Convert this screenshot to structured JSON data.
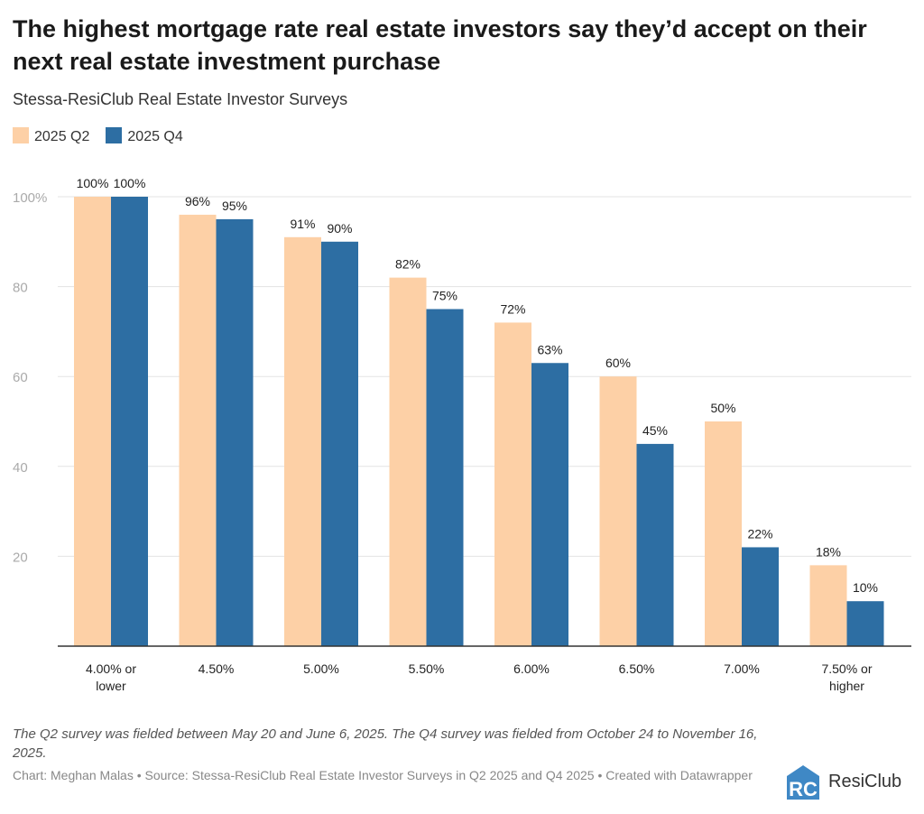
{
  "title": "The highest mortgage rate real estate investors say they’d accept on their next real estate investment purchase",
  "subtitle": "Stessa-ResiClub Real Estate Investor Surveys",
  "note": "The Q2 survey was fielded between May 20 and June 6, 2025. The Q4 survey was fielded from October 24 to November 16, 2025.",
  "credit": "Chart: Meghan Malas • Source: Stessa-ResiClub Real Estate Investor Surveys in Q2 2025 and Q4 2025 • Created with Datawrapper",
  "logo": {
    "text": "ResiClub",
    "mark": "RC"
  },
  "colors": {
    "q2": "#fdd0a6",
    "q4": "#2d6ea3",
    "grid": "#e3e3e3",
    "axis": "#333333"
  },
  "chart_data": {
    "type": "bar",
    "title": "The highest mortgage rate real estate investors say they’d accept on their next real estate investment purchase",
    "categories": [
      [
        "4.00% or",
        "lower"
      ],
      [
        "4.50%"
      ],
      [
        "5.00%"
      ],
      [
        "5.50%"
      ],
      [
        "6.00%"
      ],
      [
        "6.50%"
      ],
      [
        "7.00%"
      ],
      [
        "7.50% or",
        "higher"
      ]
    ],
    "series": [
      {
        "name": "2025 Q2",
        "values": [
          100,
          96,
          91,
          82,
          72,
          60,
          50,
          18
        ],
        "labels": [
          "100%",
          "96%",
          "91%",
          "82%",
          "72%",
          "60%",
          "50%",
          "18%"
        ]
      },
      {
        "name": "2025 Q4",
        "values": [
          100,
          95,
          90,
          75,
          63,
          45,
          22,
          10
        ],
        "labels": [
          "100%",
          "95%",
          "90%",
          "75%",
          "63%",
          "45%",
          "22%",
          "10%"
        ]
      }
    ],
    "yticks": [
      20,
      40,
      60,
      80,
      100
    ],
    "ytick_labels": [
      "20",
      "40",
      "60",
      "80",
      "100%"
    ],
    "ylim": [
      0,
      100
    ],
    "grid": true,
    "legend": "top-left",
    "xlabel": "",
    "ylabel": ""
  }
}
